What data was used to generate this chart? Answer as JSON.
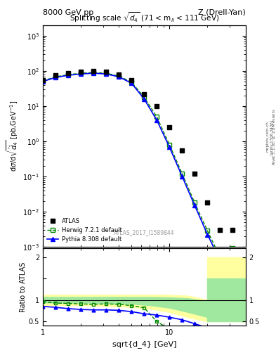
{
  "title_top_left": "8000 GeV pp",
  "title_top_right": "Z (Drell-Yan)",
  "plot_title": "Splitting scale $\\sqrt{d_4}$ (71 < m$_{ll}$ < 111 GeV)",
  "watermark": "ATLAS_2017_I1589844",
  "atlas_x": [
    1.0,
    1.26,
    1.58,
    2.0,
    2.51,
    3.16,
    3.98,
    5.01,
    6.31,
    7.94,
    10.0,
    12.6,
    15.8,
    20.0,
    25.1,
    31.6
  ],
  "atlas_y": [
    55,
    75,
    85,
    95,
    100,
    95,
    80,
    55,
    22,
    10,
    2.5,
    0.55,
    0.12,
    0.018,
    0.003,
    0.003
  ],
  "herwig_x": [
    1.0,
    1.26,
    1.58,
    2.0,
    2.51,
    3.16,
    3.98,
    5.01,
    6.31,
    7.94,
    10.0,
    12.6,
    15.8,
    20.0,
    25.1,
    31.6
  ],
  "herwig_y": [
    52,
    68,
    78,
    86,
    90,
    86,
    72,
    48,
    18,
    5.0,
    0.8,
    0.12,
    0.018,
    0.0028,
    0.0005,
    0.0009
  ],
  "pythia_x": [
    1.0,
    1.26,
    1.58,
    2.0,
    2.51,
    3.16,
    3.98,
    5.01,
    6.31,
    7.94,
    10.0,
    12.6,
    15.8,
    20.0,
    25.1,
    31.6
  ],
  "pythia_y": [
    50,
    65,
    75,
    82,
    86,
    82,
    68,
    45,
    16,
    4.0,
    0.68,
    0.1,
    0.015,
    0.0022,
    0.0004,
    0.0003
  ],
  "herwig_ratio_x": [
    1.0,
    1.26,
    1.58,
    2.0,
    2.51,
    3.16,
    3.98,
    5.01,
    6.31,
    7.94,
    10.0,
    12.6,
    15.8
  ],
  "herwig_ratio_y": [
    0.96,
    0.93,
    0.92,
    0.91,
    0.9,
    0.91,
    0.9,
    0.87,
    0.82,
    0.5,
    0.32,
    0.22,
    0.15
  ],
  "pythia_ratio_x": [
    1.0,
    1.26,
    1.58,
    2.0,
    2.51,
    3.16,
    3.98,
    5.01,
    6.31,
    7.94,
    10.0,
    12.6,
    15.8,
    20.0
  ],
  "pythia_ratio_y": [
    0.85,
    0.83,
    0.8,
    0.78,
    0.77,
    0.77,
    0.76,
    0.73,
    0.68,
    0.65,
    0.6,
    0.54,
    0.45,
    0.35
  ],
  "band_yellow_x": [
    1.0,
    2.0,
    3.0,
    5.0,
    7.0,
    10.0,
    14.0,
    20.0
  ],
  "band_yellow_lo": [
    0.88,
    0.88,
    0.86,
    0.84,
    0.8,
    0.72,
    0.6,
    0.5
  ],
  "band_yellow_hi": [
    1.12,
    1.12,
    1.12,
    1.12,
    1.12,
    1.12,
    1.1,
    1.0
  ],
  "band_green_x": [
    1.0,
    2.0,
    3.0,
    5.0,
    7.0,
    10.0,
    14.0,
    20.0
  ],
  "band_green_lo": [
    0.94,
    0.94,
    0.93,
    0.91,
    0.88,
    0.82,
    0.72,
    0.6
  ],
  "band_green_hi": [
    1.07,
    1.07,
    1.07,
    1.07,
    1.07,
    1.06,
    1.04,
    0.97
  ],
  "band_hi_x_start": 20.0,
  "band_hi_x_end": 40.0,
  "band_hi_yellow_lo": 0.5,
  "band_hi_yellow_hi": 2.0,
  "band_hi_green_lo": 0.5,
  "band_hi_green_hi": 1.5,
  "xlim": [
    1.0,
    40.0
  ],
  "ylim_main": [
    0.001,
    2000
  ],
  "ylim_ratio": [
    0.4,
    2.2
  ],
  "atlas_color": "black",
  "herwig_color": "#008800",
  "pythia_color": "blue",
  "green_band_color": "#a0e8a0",
  "yellow_band_color": "#ffffa0"
}
